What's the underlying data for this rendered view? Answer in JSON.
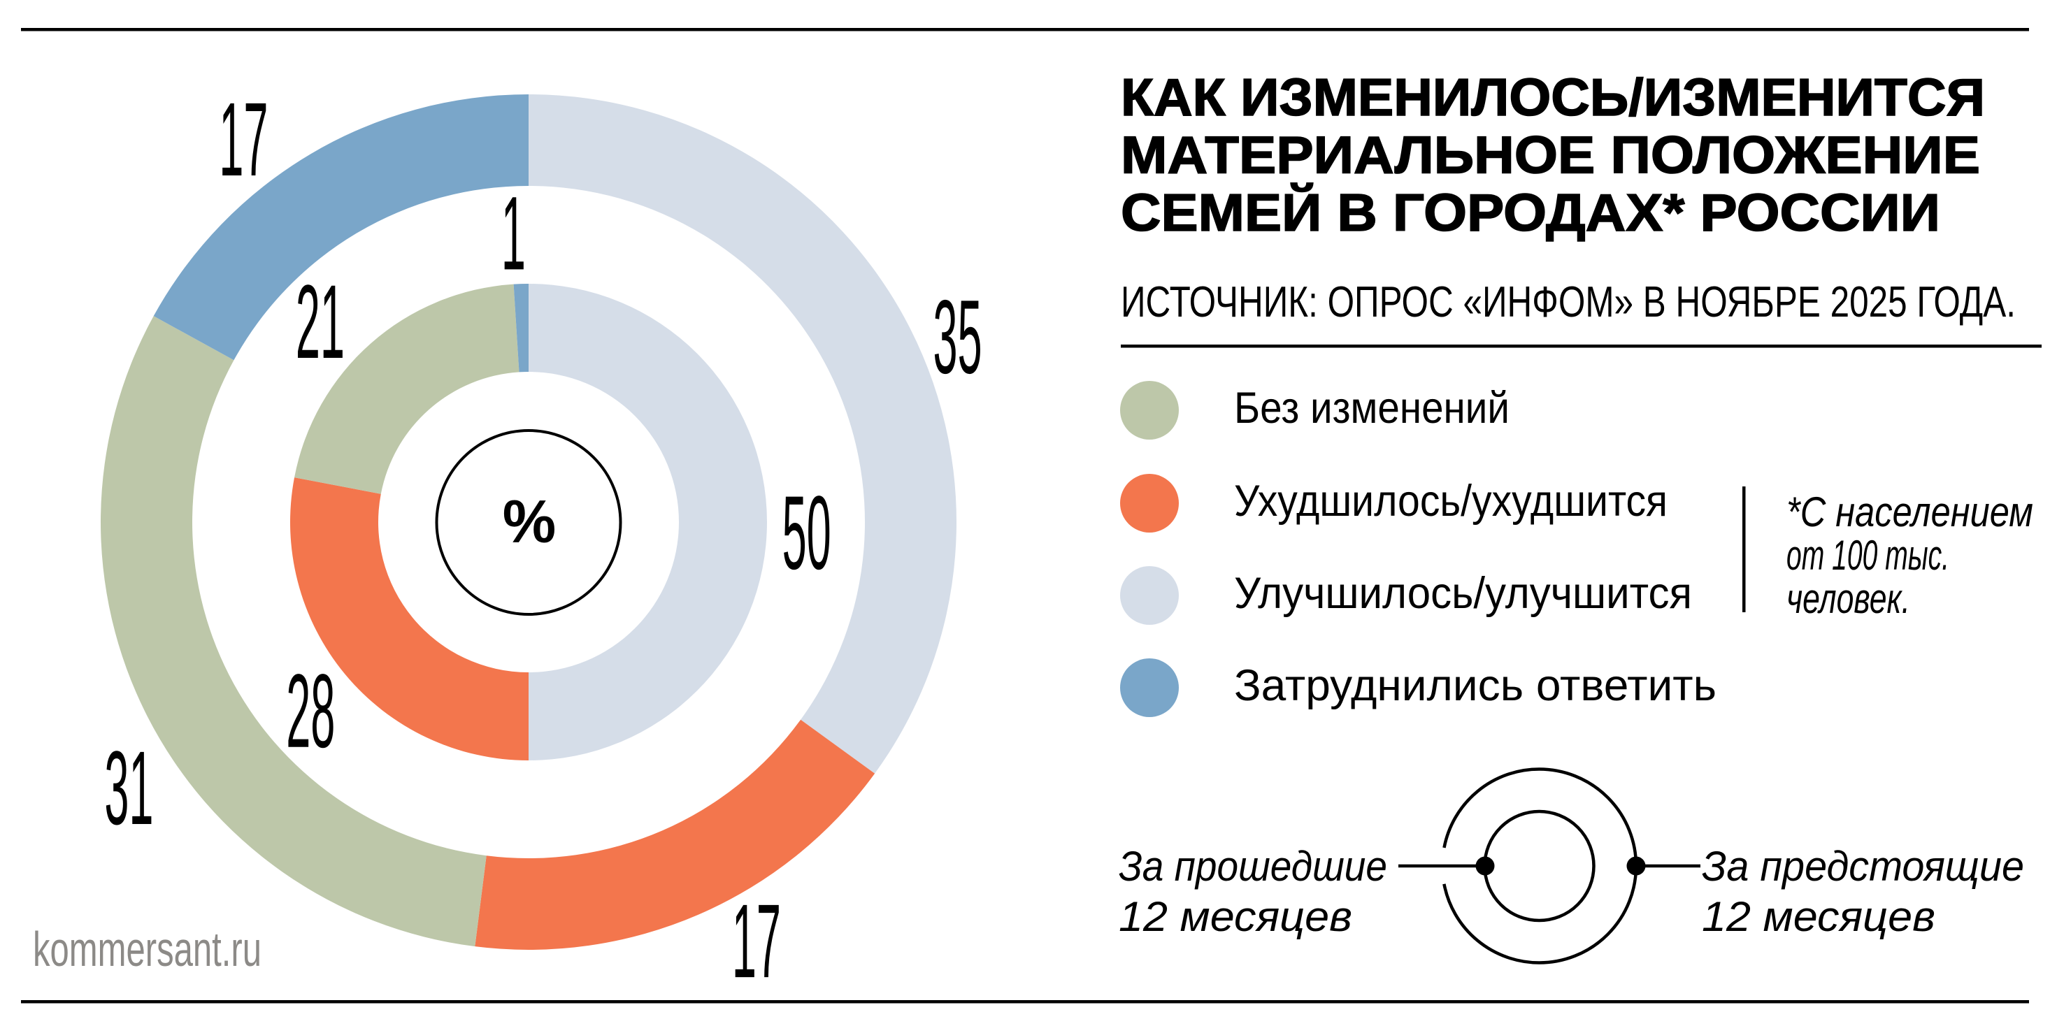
{
  "title": {
    "lines": [
      "КАК ИЗМЕНИЛОСЬ/ИЗМЕНИТСЯ",
      "МАТЕРИАЛЬНОЕ ПОЛОЖЕНИЕ",
      "СЕМЕЙ В ГОРОДАХ* РОССИИ"
    ]
  },
  "source": "ИСТОЧНИК: ОПРОС «ИНФОМ» В НОЯБРЕ 2025 ГОДА.",
  "watermark": "kommersant.ru",
  "center_symbol": "%",
  "legend": {
    "items": [
      {
        "label": "Без изменений",
        "color": "#bdc7a9"
      },
      {
        "label": "Ухудшилось/ухудшится",
        "color": "#f3764d"
      },
      {
        "label": "Улучшилось/улучшится",
        "color": "#d5dde8"
      },
      {
        "label": "Затруднились ответить",
        "color": "#7aa6c9"
      }
    ]
  },
  "footnote": {
    "lines": [
      "*С населением",
      "от 100 тыс.",
      "человек."
    ]
  },
  "ring_key": {
    "inner_ring_label_lines": [
      "За прошедшие",
      "12 месяцев"
    ],
    "outer_ring_label_lines": [
      "За предстоящие",
      "12 месяцев"
    ]
  },
  "chart_data": {
    "type": "pie",
    "subtype": "double-ring-donut",
    "unit": "%",
    "title": "Как изменилось/изменится материальное положение семей в городах России",
    "categories": [
      "Улучшилось/улучшится",
      "Ухудшилось/ухудшится",
      "Без изменений",
      "Затруднились ответить"
    ],
    "colors": [
      "#d5dde8",
      "#f3764d",
      "#bdc7a9",
      "#7aa6c9"
    ],
    "start_angle_deg": 0,
    "direction": "clockwise",
    "series": [
      {
        "name": "За предстоящие 12 месяцев",
        "ring": "outer",
        "values": [
          35,
          17,
          31,
          17
        ]
      },
      {
        "name": "За прошедшие 12 месяцев",
        "ring": "inner",
        "values": [
          50,
          28,
          21,
          1
        ]
      }
    ]
  }
}
